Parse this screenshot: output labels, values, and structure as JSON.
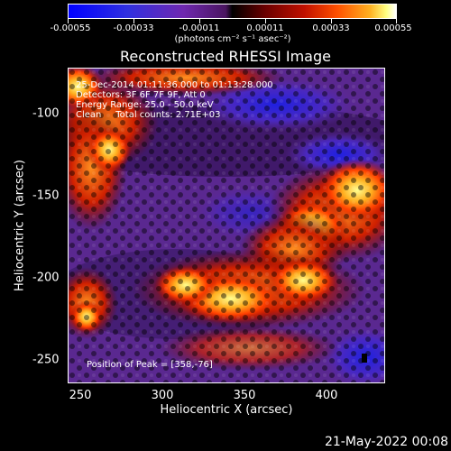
{
  "colorbar": {
    "tick_labels": [
      "-0.00055",
      "-0.00033",
      "-0.00011",
      "0.00011",
      "0.00033",
      "0.00055"
    ],
    "units_text": "(photons cm⁻² s⁻¹ asec⁻²)"
  },
  "title": "Reconstructed RHESSI Image",
  "annotations": {
    "time": "25-Dec-2014 01:11:36.000 to 01:13:28.000",
    "detectors": "Detectors: 3F 6F 7F 9F, Att 0",
    "energy": "Energy Range: 25.0 - 50.0 keV",
    "clean": "Clean     Total counts: 2.71E+03",
    "peak": "Position of Peak = [358,-76]"
  },
  "axes": {
    "xlabel": "Heliocentric X (arcsec)",
    "ylabel": "Heliocentric Y (arcsec)",
    "xticks": [
      "250",
      "300",
      "350",
      "400"
    ],
    "yticks": [
      "-100",
      "-150",
      "-200",
      "-250"
    ]
  },
  "date_stamp": "21-May-2022 00:08",
  "colors": {
    "background": "#000000",
    "axis": "#ffffff",
    "negative": "#3a20c0",
    "positive": "#ff8000"
  }
}
